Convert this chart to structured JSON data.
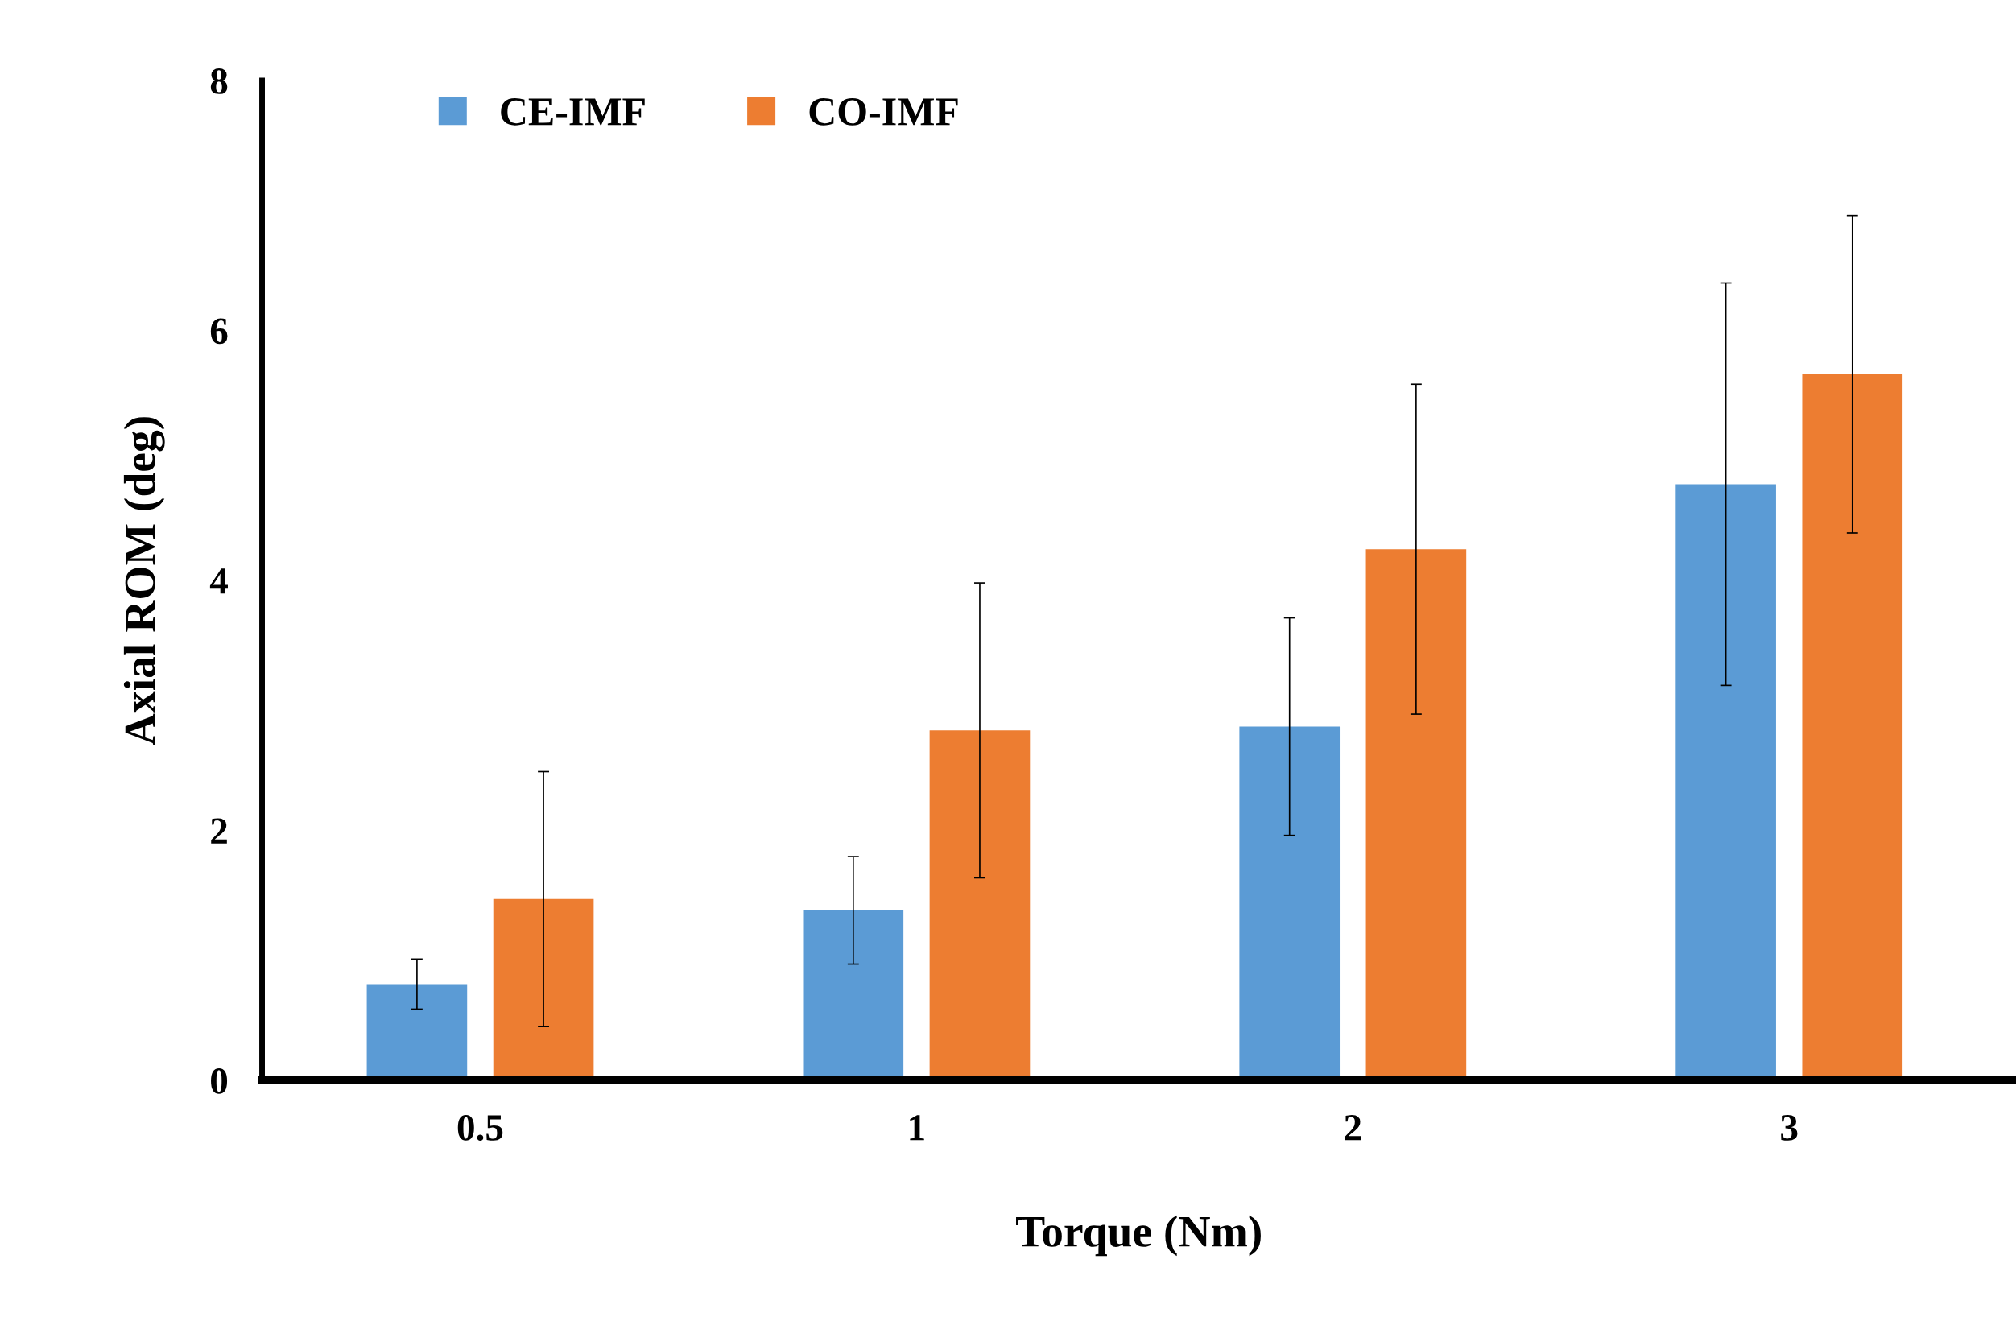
{
  "chart_data": {
    "type": "bar",
    "xlabel": "Torque (Nm)",
    "ylabel": "Axial ROM (deg)",
    "categories": [
      "0.5",
      "1",
      "2",
      "3"
    ],
    "series": [
      {
        "name": "CE-IMF",
        "color": "#5b9bd5",
        "values": [
          0.77,
          1.36,
          2.83,
          4.77
        ],
        "errors": [
          0.2,
          0.43,
          0.87,
          1.61
        ]
      },
      {
        "name": "CO-IMF",
        "color": "#ed7d31",
        "values": [
          1.45,
          2.8,
          4.25,
          5.65
        ],
        "errors": [
          1.02,
          1.18,
          1.32,
          1.27
        ]
      }
    ],
    "ylim": [
      0,
      8
    ],
    "yticks": [
      0,
      2,
      4,
      6,
      8
    ],
    "grid": false,
    "legend": "top left"
  }
}
